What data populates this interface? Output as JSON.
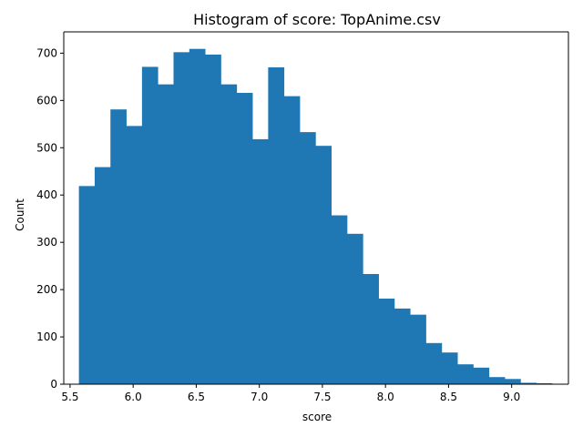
{
  "chart_data": {
    "type": "bar",
    "title": "Histogram of score: TopAnime.csv",
    "xlabel": "score",
    "ylabel": "Count",
    "xlim": [
      5.45,
      9.45
    ],
    "ylim": [
      0,
      745
    ],
    "x_ticks": [
      5.5,
      6.0,
      6.5,
      7.0,
      7.5,
      8.0,
      8.5,
      9.0
    ],
    "x_tick_labels": [
      "5.5",
      "6.0",
      "6.5",
      "7.0",
      "7.5",
      "8.0",
      "8.5",
      "9.0"
    ],
    "y_ticks": [
      0,
      100,
      200,
      300,
      400,
      500,
      600,
      700
    ],
    "y_tick_labels": [
      "0",
      "100",
      "200",
      "300",
      "400",
      "500",
      "600",
      "700"
    ],
    "bar_color": "#1f77b4",
    "bins": {
      "start": 5.57,
      "end": 9.32,
      "edges": [
        5.57,
        5.695,
        5.82,
        5.945,
        6.07,
        6.195,
        6.32,
        6.445,
        6.57,
        6.695,
        6.82,
        6.945,
        7.07,
        7.195,
        7.32,
        7.445,
        7.57,
        7.695,
        7.82,
        7.945,
        8.07,
        8.195,
        8.32,
        8.445,
        8.57,
        8.695,
        8.82,
        8.945,
        9.07,
        9.195,
        9.32
      ],
      "counts": [
        419,
        459,
        581,
        546,
        671,
        634,
        702,
        709,
        697,
        634,
        616,
        518,
        670,
        609,
        533,
        504,
        357,
        318,
        233,
        181,
        160,
        147,
        87,
        67,
        42,
        35,
        15,
        11,
        3,
        2
      ]
    }
  }
}
